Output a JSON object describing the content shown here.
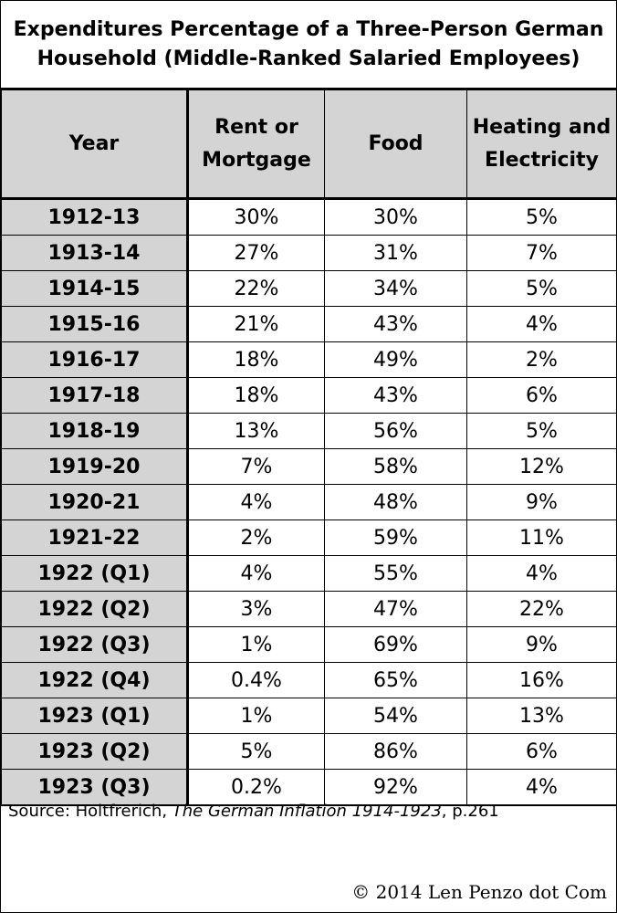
{
  "title_line1": "Expenditures Percentage of a Three-Person German",
  "title_line2": "Household (Middle-Ranked Salaried Employees)",
  "headers": {
    "year": "Year",
    "rent_line1": "Rent or",
    "rent_line2": "Mortgage",
    "food": "Food",
    "heat_line1": "Heating and",
    "heat_line2": "Electricity"
  },
  "source": {
    "prefix": "Source: Holtfrerich, ",
    "work": "The German Inflation 1914-1923",
    "suffix": ", p.261"
  },
  "copyright": "© 2014 Len Penzo dot Com",
  "chart_data": {
    "type": "table",
    "title": "Expenditures Percentage of a Three-Person German Household (Middle-Ranked Salaried Employees)",
    "columns": [
      "Year",
      "Rent or Mortgage",
      "Food",
      "Heating and Electricity"
    ],
    "rows": [
      {
        "year": "1912-13",
        "rent": "30%",
        "food": "30%",
        "heat": "5%"
      },
      {
        "year": "1913-14",
        "rent": "27%",
        "food": "31%",
        "heat": "7%"
      },
      {
        "year": "1914-15",
        "rent": "22%",
        "food": "34%",
        "heat": "5%"
      },
      {
        "year": "1915-16",
        "rent": "21%",
        "food": "43%",
        "heat": "4%"
      },
      {
        "year": "1916-17",
        "rent": "18%",
        "food": "49%",
        "heat": "2%"
      },
      {
        "year": "1917-18",
        "rent": "18%",
        "food": "43%",
        "heat": "6%"
      },
      {
        "year": "1918-19",
        "rent": "13%",
        "food": "56%",
        "heat": "5%"
      },
      {
        "year": "1919-20",
        "rent": "7%",
        "food": "58%",
        "heat": "12%"
      },
      {
        "year": "1920-21",
        "rent": "4%",
        "food": "48%",
        "heat": "9%"
      },
      {
        "year": "1921-22",
        "rent": "2%",
        "food": "59%",
        "heat": "11%"
      },
      {
        "year": "1922 (Q1)",
        "rent": "4%",
        "food": "55%",
        "heat": "4%"
      },
      {
        "year": "1922 (Q2)",
        "rent": "3%",
        "food": "47%",
        "heat": "22%"
      },
      {
        "year": "1922 (Q3)",
        "rent": "1%",
        "food": "69%",
        "heat": "9%"
      },
      {
        "year": "1922 (Q4)",
        "rent": "0.4%",
        "food": "65%",
        "heat": "16%"
      },
      {
        "year": "1923 (Q1)",
        "rent": "1%",
        "food": "54%",
        "heat": "13%"
      },
      {
        "year": "1923 (Q2)",
        "rent": "5%",
        "food": "86%",
        "heat": "6%"
      },
      {
        "year": "1923 (Q3)",
        "rent": "0.2%",
        "food": "92%",
        "heat": "4%"
      }
    ]
  }
}
